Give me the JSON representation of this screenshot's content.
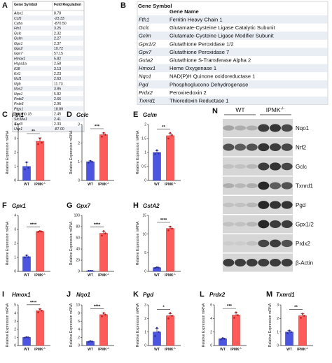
{
  "colors": {
    "wt": "#4b55e0",
    "ipmk": "#ff5b5b",
    "wt_dot": "#2a2f9e",
    "ipmk_dot": "#b81f1f",
    "up": "#c0141e",
    "down": "#3a6aa0"
  },
  "table_a": {
    "label": "A",
    "headers": [
      "Gene Symbol",
      "Fold Regulation"
    ],
    "rows": [
      {
        "gene": "Alox1",
        "value": "8.78",
        "dir": "up"
      },
      {
        "gene": "Ccl5",
        "value": "-23.33",
        "dir": "down"
      },
      {
        "gene": "Cyba",
        "value": "-870.50",
        "dir": "down"
      },
      {
        "gene": "Fth1",
        "value": "3.25",
        "dir": "up"
      },
      {
        "gene": "Gclc",
        "value": "2.32",
        "dir": "up"
      },
      {
        "gene": "Gclm",
        "value": "2.27",
        "dir": "up"
      },
      {
        "gene": "Gpx1",
        "value": "2.37",
        "dir": "up"
      },
      {
        "gene": "Gpx2",
        "value": "10.72",
        "dir": "up"
      },
      {
        "gene": "Gpx7",
        "value": "57.15",
        "dir": "up"
      },
      {
        "gene": "Hmox1",
        "value": "5.82",
        "dir": "up"
      },
      {
        "gene": "Hspa1a",
        "value": "2.58",
        "dir": "up"
      },
      {
        "gene": "Il18",
        "value": "3.13",
        "dir": "up"
      },
      {
        "gene": "Krt1",
        "value": "2.23",
        "dir": "up"
      },
      {
        "gene": "Ncf1",
        "value": "2.63",
        "dir": "up"
      },
      {
        "gene": "Ngb",
        "value": "11.73",
        "dir": "up"
      },
      {
        "gene": "Nos2",
        "value": "3.85",
        "dir": "up"
      },
      {
        "gene": "Nqo1",
        "value": "5.82",
        "dir": "up"
      },
      {
        "gene": "Prdx2",
        "value": "2.66",
        "dir": "up"
      },
      {
        "gene": "Prdx6",
        "value": "2.96",
        "dir": "up"
      },
      {
        "gene": "Ptgs1",
        "value": "18.89",
        "dir": "up"
      },
      {
        "gene": "Serpinb 1b",
        "value": "2.45",
        "dir": "up"
      },
      {
        "gene": "Slc38a1",
        "value": "2.41",
        "dir": "up"
      },
      {
        "gene": "Sod3",
        "value": "2.33",
        "dir": "up"
      },
      {
        "gene": "Ucp1",
        "value": "-87.00",
        "dir": "down"
      }
    ]
  },
  "table_b": {
    "label": "B",
    "headers": [
      "Gene Symbol",
      "Gene Name"
    ],
    "rows": [
      {
        "gene": "Fth1",
        "name": "Ferritin Heavy Chain 1"
      },
      {
        "gene": "Gclc",
        "name": "Glutamate-Cysteine Ligase Catalytic Subunit"
      },
      {
        "gene": "Gclm",
        "name": "Glutamate-Cysteine Ligase Modifier Subunit"
      },
      {
        "gene": "Gpx1/2",
        "name": "Glutathione Peroxidase 1/2"
      },
      {
        "gene": "Gpx7",
        "name": "Glutathione Peroxidase 7"
      },
      {
        "gene": "Gsta2",
        "name": "Glutathione S-Transferase Alpha 2"
      },
      {
        "gene": "Hmox1",
        "name": "Heme Oxygenase 1"
      },
      {
        "gene": "Nqo1",
        "name": "NAD(P)H Quinone oxidoreductase 1"
      },
      {
        "gene": "Pgd",
        "name": "Phosphoglucono Dehydrogenase"
      },
      {
        "gene": "Prdx2",
        "name": "Peroxiredoxin 2"
      },
      {
        "gene": "Txnrd1",
        "name": "Thioredoxin Reductase 1"
      }
    ]
  },
  "chart_data": [
    {
      "type": "bar",
      "panel": "C",
      "title": "Fth1",
      "ylabel": "Relative Expression mRNA",
      "categories": [
        "WT",
        "IPMK-/-"
      ],
      "values": [
        1.0,
        2.8
      ],
      "errors": [
        0.3,
        0.25
      ],
      "points": [
        [
          0.8,
          1.3,
          0.9
        ],
        [
          2.6,
          3.0,
          2.7
        ]
      ],
      "ylim": [
        0,
        4
      ],
      "yticks": [
        0,
        1,
        2,
        3,
        4
      ],
      "significance": "**"
    },
    {
      "type": "bar",
      "panel": "D",
      "title": "Gclc",
      "ylabel": "Relative Expression mRNA",
      "categories": [
        "WT",
        "IPMK-/-"
      ],
      "values": [
        1.0,
        2.45
      ],
      "errors": [
        0.05,
        0.1
      ],
      "points": [
        [
          0.95,
          1.05,
          1.0
        ],
        [
          2.35,
          2.55,
          2.45
        ]
      ],
      "ylim": [
        0,
        3
      ],
      "yticks": [
        0,
        1,
        2,
        3
      ],
      "significance": "***"
    },
    {
      "type": "bar",
      "panel": "E",
      "title": "Gclm",
      "ylabel": "Relative Expression mRNA",
      "categories": [
        "WT",
        "IPMK-/-"
      ],
      "values": [
        1.0,
        1.6
      ],
      "errors": [
        0.07,
        0.08
      ],
      "points": [
        [
          0.95,
          1.08,
          0.97
        ],
        [
          1.5,
          1.7,
          1.62
        ]
      ],
      "ylim": [
        0,
        2.0
      ],
      "yticks": [
        0.0,
        0.5,
        1.0,
        1.5,
        2.0
      ],
      "significance": "**"
    },
    {
      "type": "bar",
      "panel": "F",
      "title": "Gpx1",
      "ylabel": "Relative Expression mRNA",
      "categories": [
        "WT",
        "IPMK-/-"
      ],
      "values": [
        1.05,
        2.85
      ],
      "errors": [
        0.1,
        0.03
      ],
      "points": [
        [
          1.0,
          1.15,
          1.02
        ],
        [
          2.82,
          2.88,
          2.85
        ]
      ],
      "ylim": [
        0,
        4
      ],
      "yticks": [
        0,
        1,
        2,
        3,
        4
      ],
      "significance": "****"
    },
    {
      "type": "bar",
      "panel": "G",
      "title": "Gpx7",
      "ylabel": "Relative Expression mRNA",
      "categories": [
        "WT",
        "IPMK-/-"
      ],
      "values": [
        1.0,
        68
      ],
      "errors": [
        0.2,
        4
      ],
      "points": [
        [
          0.9,
          1.1,
          1.0
        ],
        [
          64,
          72,
          68
        ]
      ],
      "ylim": [
        0,
        100
      ],
      "yticks": [
        0,
        20,
        40,
        60,
        80,
        100
      ],
      "significance": "****"
    },
    {
      "type": "bar",
      "panel": "H",
      "title": "GstA2",
      "ylabel": "Relative Expression mRNA",
      "categories": [
        "WT",
        "IPMK-/-"
      ],
      "values": [
        1.0,
        11.5
      ],
      "errors": [
        0.1,
        0.5
      ],
      "points": [
        [
          0.9,
          1.1,
          1.0
        ],
        [
          11.0,
          12.0,
          11.5
        ]
      ],
      "ylim": [
        0,
        15
      ],
      "yticks": [
        0,
        5,
        10,
        15
      ],
      "significance": "****"
    },
    {
      "type": "bar",
      "panel": "I",
      "title": "Hmox1",
      "ylabel": "Relative Expression mRNA",
      "categories": [
        "WT",
        "IPMK-/-"
      ],
      "values": [
        1.0,
        4.3
      ],
      "errors": [
        0.05,
        0.2
      ],
      "points": [
        [
          0.97,
          1.03,
          1.0
        ],
        [
          4.1,
          4.5,
          4.3
        ]
      ],
      "ylim": [
        0,
        5
      ],
      "yticks": [
        0,
        1,
        2,
        3,
        4,
        5
      ],
      "significance": "****"
    },
    {
      "type": "bar",
      "panel": "J",
      "title": "Nqo1",
      "ylabel": "Relative Expression mRNA",
      "categories": [
        "WT",
        "IPMK-/-"
      ],
      "values": [
        1.0,
        7.6
      ],
      "errors": [
        0.1,
        0.4
      ],
      "points": [
        [
          0.9,
          1.1,
          1.0
        ],
        [
          7.2,
          8.0,
          7.6
        ]
      ],
      "ylim": [
        0,
        10
      ],
      "yticks": [
        0,
        2,
        4,
        6,
        8,
        10
      ],
      "significance": "****"
    },
    {
      "type": "bar",
      "panel": "K",
      "title": "Pgd",
      "ylabel": "Relative Expression mRNA",
      "categories": [
        "WT",
        "IPMK-/-"
      ],
      "values": [
        1.0,
        2.2
      ],
      "errors": [
        0.25,
        0.15
      ],
      "points": [
        [
          0.7,
          1.3,
          1.0
        ],
        [
          2.0,
          2.4,
          2.2
        ]
      ],
      "ylim": [
        0,
        3
      ],
      "yticks": [
        0,
        1,
        2,
        3
      ],
      "significance": "*"
    },
    {
      "type": "bar",
      "panel": "L",
      "title": "Prdx2",
      "ylabel": "Relative Expression mRNA",
      "categories": [
        "WT",
        "IPMK-/-"
      ],
      "values": [
        1.0,
        4.5
      ],
      "errors": [
        0.1,
        0.35
      ],
      "points": [
        [
          0.9,
          1.1,
          1.0
        ],
        [
          4.1,
          4.9,
          4.5
        ]
      ],
      "ylim": [
        0,
        6
      ],
      "yticks": [
        0,
        2,
        4,
        6
      ],
      "significance": "***"
    },
    {
      "type": "bar",
      "panel": "M",
      "title": "Txnrd1",
      "ylabel": "Relative Expression mRNA",
      "categories": [
        "WT",
        "IPMK-/-"
      ],
      "values": [
        1.0,
        2.2
      ],
      "errors": [
        0.1,
        0.15
      ],
      "points": [
        [
          0.9,
          1.1,
          1.0
        ],
        [
          2.05,
          2.35,
          2.2
        ]
      ],
      "ylim": [
        0,
        3
      ],
      "yticks": [
        0,
        1,
        2,
        3
      ],
      "significance": "**"
    }
  ],
  "western_blot": {
    "label": "N",
    "groups": [
      "WT",
      "IPMK-/-"
    ],
    "lanes_per_group": 3,
    "bands": [
      {
        "name": "Nqo1",
        "intensity": [
          0.35,
          0.3,
          0.3,
          0.85,
          0.9,
          0.8
        ]
      },
      {
        "name": "Nrf2",
        "intensity": [
          0.75,
          0.7,
          0.75,
          0.9,
          0.85,
          0.8
        ]
      },
      {
        "name": "Gclc",
        "intensity": [
          0.2,
          0.2,
          0.25,
          0.85,
          0.9,
          0.8
        ]
      },
      {
        "name": "Txnrd1",
        "intensity": [
          0.3,
          0.25,
          0.3,
          0.95,
          0.7,
          0.75
        ]
      },
      {
        "name": "Pgd",
        "intensity": [
          0.2,
          0.2,
          0.25,
          0.95,
          0.9,
          0.9
        ]
      },
      {
        "name": "Gpx1/2",
        "intensity": [
          0.2,
          0.2,
          0.25,
          0.95,
          0.85,
          0.85
        ]
      },
      {
        "name": "Prdx2",
        "intensity": [
          0.15,
          0.15,
          0.2,
          0.8,
          0.85,
          0.75
        ]
      },
      {
        "name": "β-Actin",
        "intensity": [
          0.85,
          0.85,
          0.85,
          0.85,
          0.85,
          0.85
        ]
      }
    ]
  }
}
